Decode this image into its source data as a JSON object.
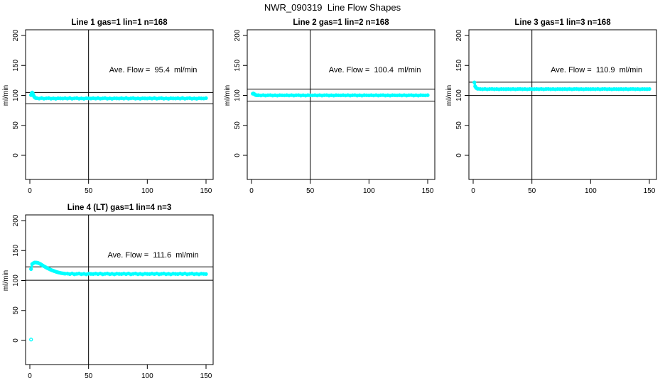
{
  "page_title": "NWR_090319  Line Flow Shapes",
  "colors": {
    "points": "#00FFFF",
    "axis": "#000000",
    "background": "#FFFFFF"
  },
  "chart_data": [
    {
      "type": "scatter",
      "title": "Line 1 gas=1 lin=1 n=168",
      "annotation": "Ave. Flow =  95.4  ml/min",
      "ave_flow_ml_min": 95.4,
      "ylabel": "ml/min",
      "xlim": [
        0,
        150
      ],
      "ylim": [
        0,
        200
      ],
      "xticks": [
        0,
        50,
        100,
        150
      ],
      "yticks": [
        0,
        50,
        100,
        150,
        200
      ],
      "vline_x": 50,
      "hlines": [
        104.9,
        85.9
      ],
      "points": [
        [
          1,
          100.5
        ],
        [
          1.5,
          103.5
        ],
        [
          2,
          104.8
        ],
        [
          2.5,
          103.5
        ],
        [
          3,
          100.5
        ],
        [
          3.5,
          98.5
        ],
        [
          4,
          97
        ],
        [
          4.5,
          96.2
        ],
        [
          5,
          95.6
        ]
      ],
      "band_x0": 6,
      "band_dx": 2,
      "band_y": [
        95.4,
        94.7,
        95.6,
        94.5,
        95.1,
        95.5,
        94.6,
        95.2,
        94.4,
        95.3,
        95.0,
        94.8,
        95.4,
        94.7,
        95.6,
        94.5,
        95.1,
        95.5,
        94.6,
        95.2,
        94.4,
        95.3,
        95.0,
        94.8,
        95.4,
        94.7,
        95.6,
        94.5,
        95.1,
        95.5,
        94.6,
        95.2,
        94.4,
        95.3,
        95.0,
        94.8,
        95.4,
        94.7,
        95.6,
        94.5,
        95.1,
        95.5,
        94.6,
        95.2,
        94.4,
        95.3,
        95.0,
        94.8,
        95.4,
        94.7,
        95.6,
        94.5,
        95.1,
        95.5,
        94.6,
        95.2,
        94.4,
        95.3,
        95.0,
        94.8,
        95.4,
        94.7,
        95.6,
        94.5,
        95.1,
        95.5,
        94.6,
        95.2,
        94.4,
        95.3,
        95.0,
        94.8,
        95.4
      ],
      "outliers": []
    },
    {
      "type": "scatter",
      "title": "Line 2 gas=1 lin=2 n=168",
      "annotation": "Ave. Flow =  100.4  ml/min",
      "ave_flow_ml_min": 100.4,
      "ylabel": "ml/min",
      "xlim": [
        0,
        150
      ],
      "ylim": [
        0,
        200
      ],
      "xticks": [
        0,
        50,
        100,
        150
      ],
      "yticks": [
        0,
        50,
        100,
        150,
        200
      ],
      "vline_x": 50,
      "hlines": [
        110.4,
        90.4
      ],
      "points": [
        [
          1,
          102.8
        ],
        [
          1.5,
          103.2
        ],
        [
          2,
          102.8
        ],
        [
          2.5,
          102
        ],
        [
          3,
          101.2
        ],
        [
          3.5,
          100.7
        ],
        [
          4,
          100.3
        ],
        [
          5,
          100.1
        ]
      ],
      "band_x0": 6,
      "band_dx": 2,
      "band_y": [
        100.4,
        99.9,
        100.5,
        99.8,
        100.2,
        100.5,
        99.8,
        100.2,
        99.7,
        100.3,
        100.1,
        100.0,
        100.4,
        99.9,
        100.5,
        99.8,
        100.2,
        100.5,
        99.8,
        100.2,
        99.7,
        100.3,
        100.1,
        100.0,
        100.4,
        99.9,
        100.5,
        99.8,
        100.2,
        100.5,
        99.8,
        100.2,
        99.7,
        100.3,
        100.1,
        100.0,
        100.4,
        99.9,
        100.5,
        99.8,
        100.2,
        100.5,
        99.8,
        100.2,
        99.7,
        100.3,
        100.1,
        100.0,
        100.4,
        99.9,
        100.5,
        99.8,
        100.2,
        100.5,
        99.8,
        100.2,
        99.7,
        100.3,
        100.1,
        100.0,
        100.4,
        99.9,
        100.5,
        99.8,
        100.2,
        100.5,
        99.8,
        100.2,
        99.7,
        100.3,
        100.1,
        100.0,
        100.4
      ],
      "outliers": []
    },
    {
      "type": "scatter",
      "title": "Line 3 gas=1 lin=3 n=168",
      "annotation": "Ave. Flow =  110.9  ml/min",
      "ave_flow_ml_min": 110.9,
      "ylabel": "ml/min",
      "xlim": [
        0,
        150
      ],
      "ylim": [
        0,
        200
      ],
      "xticks": [
        0,
        50,
        100,
        150
      ],
      "yticks": [
        0,
        50,
        100,
        150,
        200
      ],
      "vline_x": 50,
      "hlines": [
        122.0,
        99.8
      ],
      "points": [
        [
          1,
          121.8
        ],
        [
          1.7,
          115
        ],
        [
          2.4,
          112.8
        ],
        [
          3.2,
          111.6
        ],
        [
          4,
          111
        ]
      ],
      "band_x0": 6,
      "band_dx": 2,
      "band_y": [
        110.7,
        110.3,
        110.8,
        110.2,
        110.6,
        110.8,
        110.3,
        110.6,
        110.2,
        110.7,
        110.5,
        110.4,
        110.7,
        110.3,
        110.8,
        110.2,
        110.6,
        110.8,
        110.3,
        110.6,
        110.2,
        110.7,
        110.5,
        110.4,
        110.7,
        110.3,
        110.8,
        110.2,
        110.6,
        110.8,
        110.3,
        110.6,
        110.2,
        110.7,
        110.5,
        110.4,
        110.7,
        110.3,
        110.8,
        110.2,
        110.6,
        110.8,
        110.3,
        110.6,
        110.2,
        110.7,
        110.5,
        110.4,
        110.7,
        110.3,
        110.8,
        110.2,
        110.6,
        110.8,
        110.3,
        110.6,
        110.2,
        110.7,
        110.5,
        110.4,
        110.7,
        110.3,
        110.8,
        110.2,
        110.6,
        110.8,
        110.3,
        110.6,
        110.2,
        110.7,
        110.5,
        110.4,
        110.7
      ],
      "outliers": []
    },
    {
      "type": "scatter",
      "title": "Line 4 (LT) gas=1 lin=4 n=3",
      "annotation": "Ave. Flow =  111.6  ml/min",
      "ave_flow_ml_min": 111.6,
      "ylabel": "ml/min",
      "xlim": [
        0,
        150
      ],
      "ylim": [
        0,
        200
      ],
      "xticks": [
        0,
        50,
        100,
        150
      ],
      "yticks": [
        0,
        50,
        100,
        150,
        200
      ],
      "vline_x": 50,
      "hlines": [
        122.8,
        100.4
      ],
      "points": [
        [
          1,
          119
        ],
        [
          2,
          127.5
        ],
        [
          3,
          129
        ],
        [
          4,
          130
        ],
        [
          5,
          130
        ],
        [
          6,
          129.8
        ],
        [
          7,
          129.3
        ],
        [
          8,
          128.5
        ],
        [
          9,
          127.5
        ],
        [
          10,
          126.3
        ],
        [
          11,
          125
        ],
        [
          12,
          123.8
        ],
        [
          13,
          122.7
        ],
        [
          14,
          121.6
        ],
        [
          15,
          120.6
        ],
        [
          16,
          119.6
        ],
        [
          17,
          118.7
        ],
        [
          18,
          117.8
        ],
        [
          19,
          117
        ],
        [
          20,
          116.2
        ],
        [
          21,
          115.5
        ],
        [
          22,
          114.8
        ],
        [
          23,
          114.2
        ],
        [
          24,
          113.6
        ],
        [
          25,
          113.1
        ],
        [
          26,
          112.7
        ],
        [
          27,
          112.3
        ],
        [
          28,
          112
        ],
        [
          29,
          111.7
        ],
        [
          30,
          111.4
        ]
      ],
      "band_x0": 32,
      "band_dx": 2,
      "band_y": [
        111.5,
        110.6,
        111.7,
        110.4,
        111.1,
        111.6,
        110.5,
        111.2,
        110.3,
        111.4,
        111.0,
        110.8,
        111.5,
        110.6,
        111.7,
        110.4,
        111.1,
        111.6,
        110.5,
        111.2,
        110.3,
        111.4,
        111.0,
        110.8,
        111.5,
        110.6,
        111.7,
        110.4,
        111.1,
        111.6,
        110.5,
        111.2,
        110.3,
        111.4,
        111.0,
        110.8,
        111.5,
        110.6,
        111.7,
        110.4,
        111.1,
        111.6,
        110.5,
        111.2,
        110.3,
        111.4,
        111.0,
        110.8,
        111.5,
        110.6,
        111.7,
        110.4,
        111.1,
        111.6,
        110.5,
        111.2,
        110.3,
        111.4,
        111.0,
        110.8
      ],
      "outliers": [
        [
          1,
          1.5
        ]
      ]
    }
  ]
}
